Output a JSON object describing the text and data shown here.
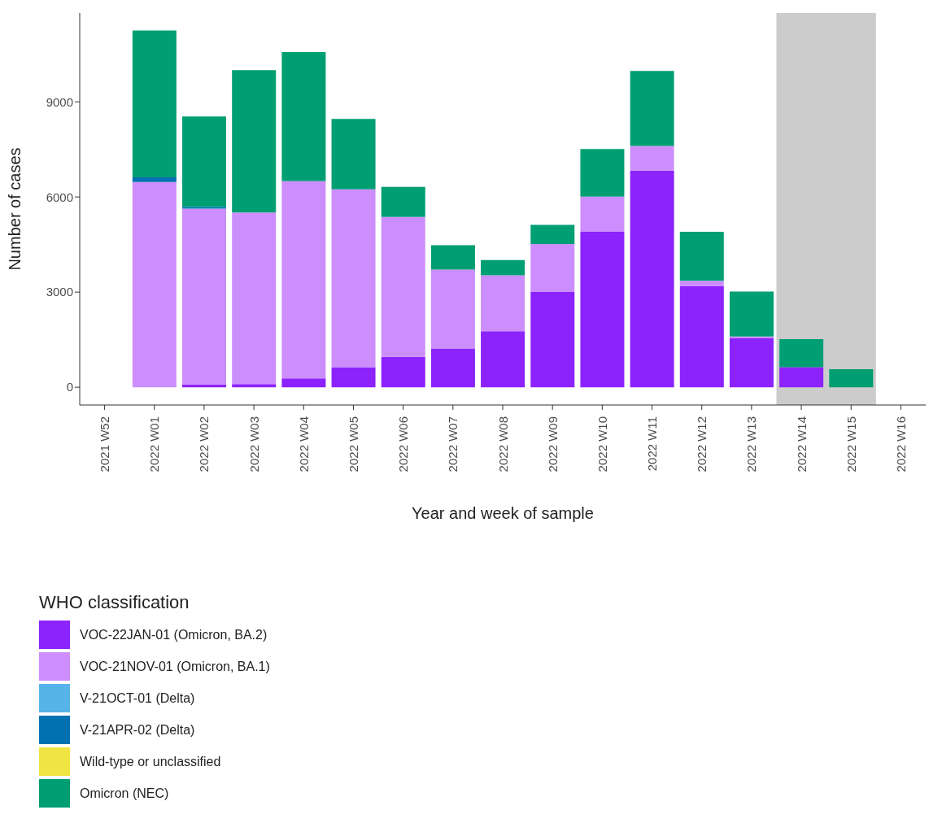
{
  "chart_data": {
    "type": "bar",
    "stacked": true,
    "xlabel": "Year and week of sample",
    "ylabel": "Number of cases",
    "legend_title": "WHO classification",
    "legend": "bottom",
    "grid": false,
    "categories": [
      "2021 W52",
      "2022 W01",
      "2022 W02",
      "2022 W03",
      "2022 W04",
      "2022 W05",
      "2022 W06",
      "2022 W07",
      "2022 W08",
      "2022 W09",
      "2022 W10",
      "2022 W11",
      "2022 W12",
      "2022 W13",
      "2022 W14",
      "2022 W15",
      "2022 W16"
    ],
    "ylim": [
      -560,
      11800
    ],
    "yticks": [
      0,
      3000,
      6000,
      9000
    ],
    "bands": [
      {
        "axis": "x",
        "from": "2022 W14",
        "to": "2022 W15",
        "color": "#cccccc"
      }
    ],
    "series": [
      {
        "name": "VOC-22JAN-01 (Omicron, BA.2)",
        "color": "#8c22fc",
        "values": [
          null,
          null,
          90,
          100,
          280,
          620,
          960,
          1220,
          1770,
          3020,
          4900,
          6830,
          3190,
          1540,
          630,
          null,
          null
        ]
      },
      {
        "name": "VOC-21NOV-01 (Omicron, BA.1)",
        "color": "#cc8efc",
        "values": [
          null,
          6470,
          5545,
          5410,
          6220,
          5620,
          4410,
          2490,
          1760,
          1500,
          1110,
          780,
          170,
          60,
          null,
          null,
          null
        ]
      },
      {
        "name": "V-21OCT-01 (Delta)",
        "color": "#56b4e9",
        "values": [
          null,
          null,
          null,
          null,
          null,
          null,
          null,
          null,
          null,
          null,
          null,
          null,
          null,
          null,
          null,
          null,
          null
        ]
      },
      {
        "name": "V-21APR-02 (Delta)",
        "color": "#0072b2",
        "values": [
          null,
          150,
          50,
          null,
          null,
          null,
          null,
          null,
          null,
          null,
          null,
          null,
          null,
          null,
          null,
          null,
          null
        ]
      },
      {
        "name": "Wild-type or unclassified",
        "color": "#f0e442",
        "values": [
          null,
          null,
          null,
          null,
          null,
          null,
          null,
          null,
          null,
          null,
          null,
          null,
          null,
          null,
          null,
          null,
          null
        ]
      },
      {
        "name": "Omicron (NEC)",
        "color": "#009e73",
        "values": [
          null,
          4630,
          2850,
          4490,
          4070,
          2220,
          950,
          770,
          480,
          600,
          1500,
          2360,
          1540,
          1420,
          890,
          570,
          null
        ]
      }
    ]
  }
}
